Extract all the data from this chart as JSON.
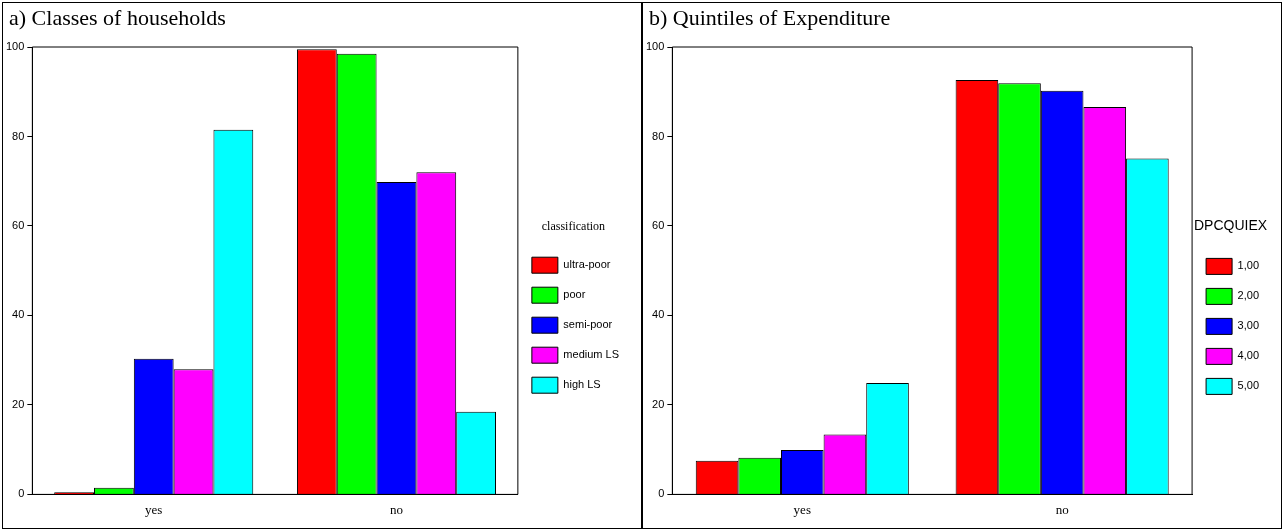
{
  "chart_data": [
    {
      "type": "bar",
      "title": "a) Classes of households",
      "categories": [
        "yes",
        "no"
      ],
      "legend": "right",
      "legend_title": "classification",
      "ylim": [
        0,
        100
      ],
      "yticks": [
        0,
        20,
        40,
        60,
        80,
        100
      ],
      "grid": false,
      "series": [
        {
          "name": "ultra-poor",
          "color": "#ff0000",
          "values": [
            0.5,
            99.5
          ]
        },
        {
          "name": "poor",
          "color": "#00ff00",
          "values": [
            1.5,
            98.5
          ]
        },
        {
          "name": "semi-poor",
          "color": "#0000ff",
          "values": [
            30.3,
            69.8
          ]
        },
        {
          "name": "medium LS",
          "color": "#ff00ff",
          "values": [
            28,
            72
          ]
        },
        {
          "name": "high LS",
          "color": "#00ffff",
          "values": [
            81.5,
            18.5
          ]
        }
      ]
    },
    {
      "type": "bar",
      "title": "b) Quintiles of Expenditure",
      "categories": [
        "yes",
        "no"
      ],
      "legend": "right",
      "legend_title": "DPCQUIEX",
      "ylim": [
        0,
        100
      ],
      "yticks": [
        0,
        20,
        40,
        60,
        80,
        100
      ],
      "grid": false,
      "series": [
        {
          "name": "1,00",
          "color": "#ff0000",
          "values": [
            7.5,
            92.6
          ]
        },
        {
          "name": "2,00",
          "color": "#00ff00",
          "values": [
            8.2,
            91.9
          ]
        },
        {
          "name": "3,00",
          "color": "#0000ff",
          "values": [
            9.9,
            90.2
          ]
        },
        {
          "name": "4,00",
          "color": "#ff00ff",
          "values": [
            13.4,
            86.6
          ]
        },
        {
          "name": "5,00",
          "color": "#00ffff",
          "values": [
            24.9,
            75.1
          ]
        }
      ]
    }
  ]
}
